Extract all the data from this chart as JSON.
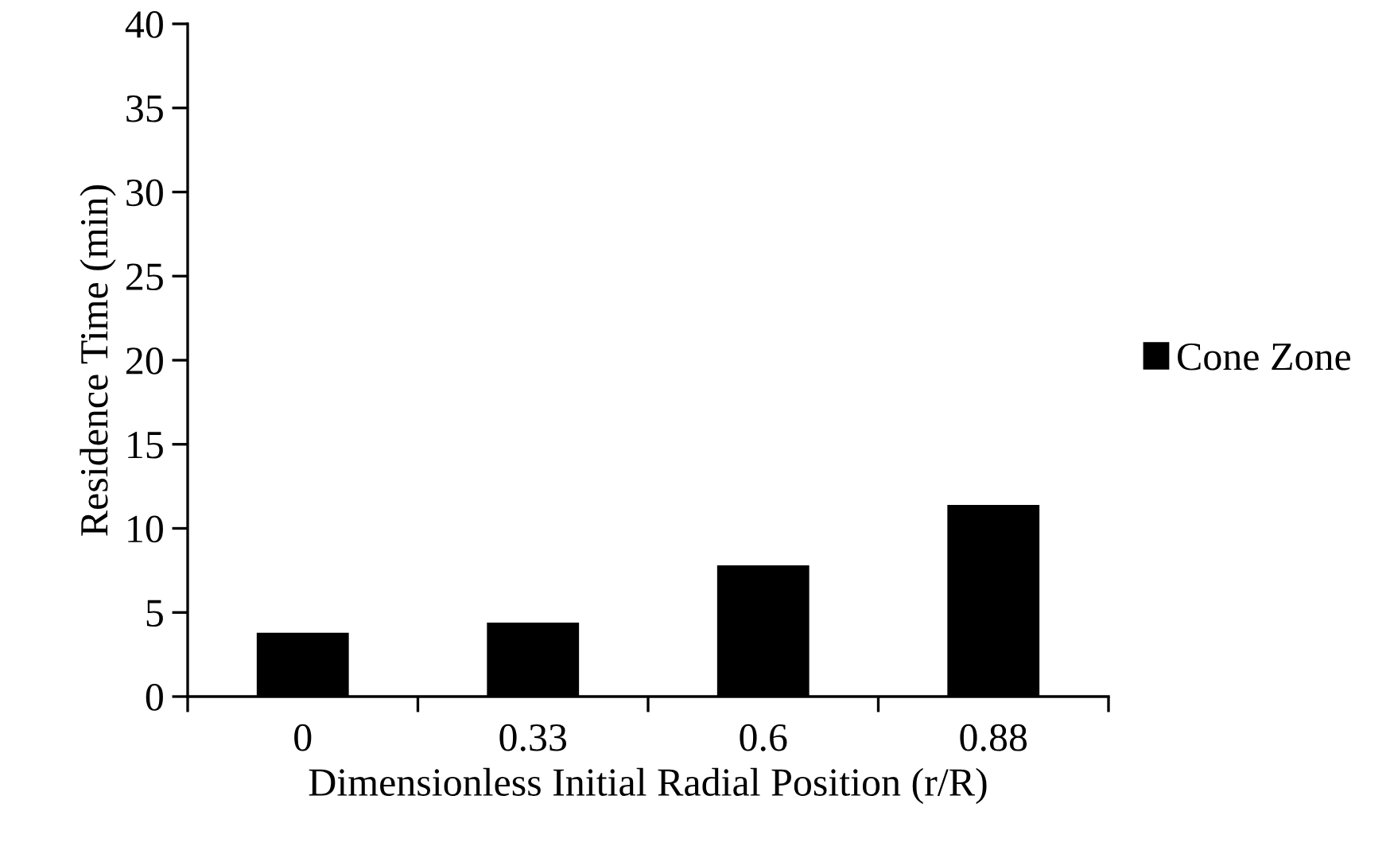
{
  "chart_data": {
    "type": "bar",
    "xlabel": "Dimensionless Initial Radial Position (r/R)",
    "ylabel": "Residence Time (min)",
    "categories": [
      "0",
      "0.33",
      "0.6",
      "0.88"
    ],
    "series": [
      {
        "name": "Cone Zone",
        "color": "#000000",
        "values": [
          3.8,
          4.4,
          7.8,
          11.4
        ]
      }
    ],
    "ylim": [
      0,
      40
    ],
    "yticks": [
      0,
      5,
      10,
      15,
      20,
      25,
      30,
      35,
      40
    ],
    "grid": false,
    "legend": "right"
  }
}
